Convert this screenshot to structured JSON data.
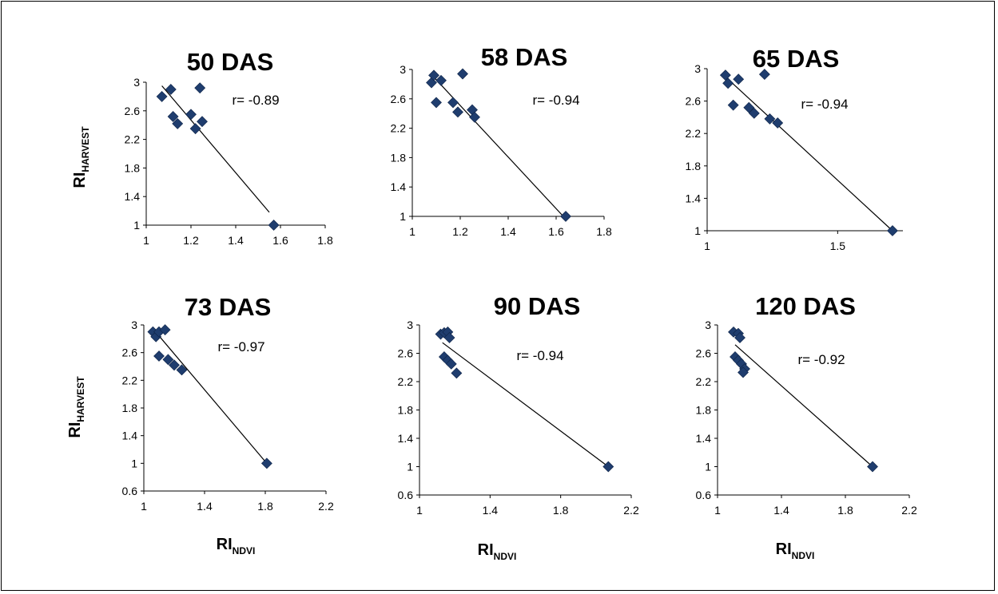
{
  "axis_labels": {
    "y_main": "RI",
    "y_sub": "HARVEST",
    "x_main": "RI",
    "x_sub": "NDVI"
  },
  "colors": {
    "marker": "#1f3d6e",
    "line": "#000000"
  },
  "chart_data": [
    {
      "type": "scatter",
      "title": "50 DAS",
      "annotation": "r= -0.89",
      "xlim": [
        1,
        1.8
      ],
      "ylim": [
        1,
        3
      ],
      "xticks": [
        "1",
        "1.2",
        "1.4",
        "1.6",
        "1.8"
      ],
      "yticks": [
        "1",
        "1.4",
        "1.8",
        "2.2",
        "2.6",
        "3"
      ],
      "points": [
        [
          1.07,
          2.8
        ],
        [
          1.11,
          2.9
        ],
        [
          1.12,
          2.52
        ],
        [
          1.14,
          2.42
        ],
        [
          1.2,
          2.55
        ],
        [
          1.22,
          2.35
        ],
        [
          1.24,
          2.92
        ],
        [
          1.25,
          2.45
        ],
        [
          1.57,
          1.0
        ]
      ],
      "trendline": [
        [
          1.07,
          2.95
        ],
        [
          1.55,
          1.18
        ]
      ]
    },
    {
      "type": "scatter",
      "title": "58 DAS",
      "annotation": "r= -0.94",
      "xlim": [
        1,
        1.8
      ],
      "ylim": [
        1,
        3
      ],
      "xticks": [
        "1",
        "1.2",
        "1.4",
        "1.6",
        "1.8"
      ],
      "yticks": [
        "1",
        "1.4",
        "1.8",
        "2.2",
        "2.6",
        "3"
      ],
      "points": [
        [
          1.08,
          2.82
        ],
        [
          1.09,
          2.92
        ],
        [
          1.1,
          2.55
        ],
        [
          1.12,
          2.85
        ],
        [
          1.17,
          2.55
        ],
        [
          1.19,
          2.42
        ],
        [
          1.21,
          2.94
        ],
        [
          1.25,
          2.45
        ],
        [
          1.26,
          2.35
        ],
        [
          1.64,
          1.0
        ]
      ],
      "trendline": [
        [
          1.08,
          2.93
        ],
        [
          1.63,
          1.0
        ]
      ]
    },
    {
      "type": "scatter",
      "title": "65 DAS",
      "annotation": "r= -0.94",
      "xlim": [
        1,
        1.75
      ],
      "ylim": [
        1,
        3
      ],
      "xticks": [
        "1",
        "1.5"
      ],
      "yticks": [
        "1",
        "1.4",
        "1.8",
        "2.2",
        "2.6",
        "3"
      ],
      "points": [
        [
          1.07,
          2.92
        ],
        [
          1.08,
          2.82
        ],
        [
          1.1,
          2.55
        ],
        [
          1.12,
          2.87
        ],
        [
          1.16,
          2.52
        ],
        [
          1.18,
          2.45
        ],
        [
          1.22,
          2.93
        ],
        [
          1.24,
          2.38
        ],
        [
          1.27,
          2.33
        ],
        [
          1.71,
          1.0
        ]
      ],
      "trendline": [
        [
          1.07,
          2.9
        ],
        [
          1.71,
          1.0
        ]
      ]
    },
    {
      "type": "scatter",
      "title": "73 DAS",
      "annotation": "r= -0.97",
      "xlim": [
        1,
        2.2
      ],
      "ylim": [
        0.6,
        3
      ],
      "xticks": [
        "1",
        "1.4",
        "1.8",
        "2.2"
      ],
      "yticks": [
        "0.6",
        "1",
        "1.4",
        "1.8",
        "2.2",
        "2.6",
        "3"
      ],
      "points": [
        [
          1.06,
          2.9
        ],
        [
          1.08,
          2.83
        ],
        [
          1.1,
          2.9
        ],
        [
          1.14,
          2.93
        ],
        [
          1.1,
          2.55
        ],
        [
          1.16,
          2.5
        ],
        [
          1.2,
          2.42
        ],
        [
          1.25,
          2.35
        ],
        [
          1.81,
          1.0
        ]
      ],
      "trendline": [
        [
          1.07,
          2.92
        ],
        [
          1.81,
          1.0
        ]
      ]
    },
    {
      "type": "scatter",
      "title": "90 DAS",
      "annotation": "r= -0.94",
      "xlim": [
        1,
        2.2
      ],
      "ylim": [
        0.6,
        3
      ],
      "xticks": [
        "1",
        "1.4",
        "1.8",
        "2.2"
      ],
      "yticks": [
        "0.6",
        "1",
        "1.4",
        "1.8",
        "2.2",
        "2.6",
        "3"
      ],
      "points": [
        [
          1.12,
          2.87
        ],
        [
          1.14,
          2.89
        ],
        [
          1.16,
          2.9
        ],
        [
          1.17,
          2.82
        ],
        [
          1.14,
          2.55
        ],
        [
          1.16,
          2.5
        ],
        [
          1.18,
          2.45
        ],
        [
          1.21,
          2.32
        ],
        [
          2.07,
          1.0
        ]
      ],
      "trendline": [
        [
          1.13,
          2.75
        ],
        [
          2.07,
          1.0
        ]
      ]
    },
    {
      "type": "scatter",
      "title": "120 DAS",
      "annotation": "r= -0.92",
      "xlim": [
        1,
        2.2
      ],
      "ylim": [
        0.6,
        3
      ],
      "xticks": [
        "1",
        "1.4",
        "1.8",
        "2.2"
      ],
      "yticks": [
        "0.6",
        "1",
        "1.4",
        "1.8",
        "2.2",
        "2.6",
        "3"
      ],
      "points": [
        [
          1.1,
          2.9
        ],
        [
          1.13,
          2.88
        ],
        [
          1.14,
          2.82
        ],
        [
          1.11,
          2.55
        ],
        [
          1.13,
          2.5
        ],
        [
          1.15,
          2.45
        ],
        [
          1.17,
          2.38
        ],
        [
          1.16,
          2.33
        ],
        [
          1.97,
          1.0
        ]
      ],
      "trendline": [
        [
          1.11,
          2.72
        ],
        [
          1.97,
          1.0
        ]
      ]
    }
  ]
}
